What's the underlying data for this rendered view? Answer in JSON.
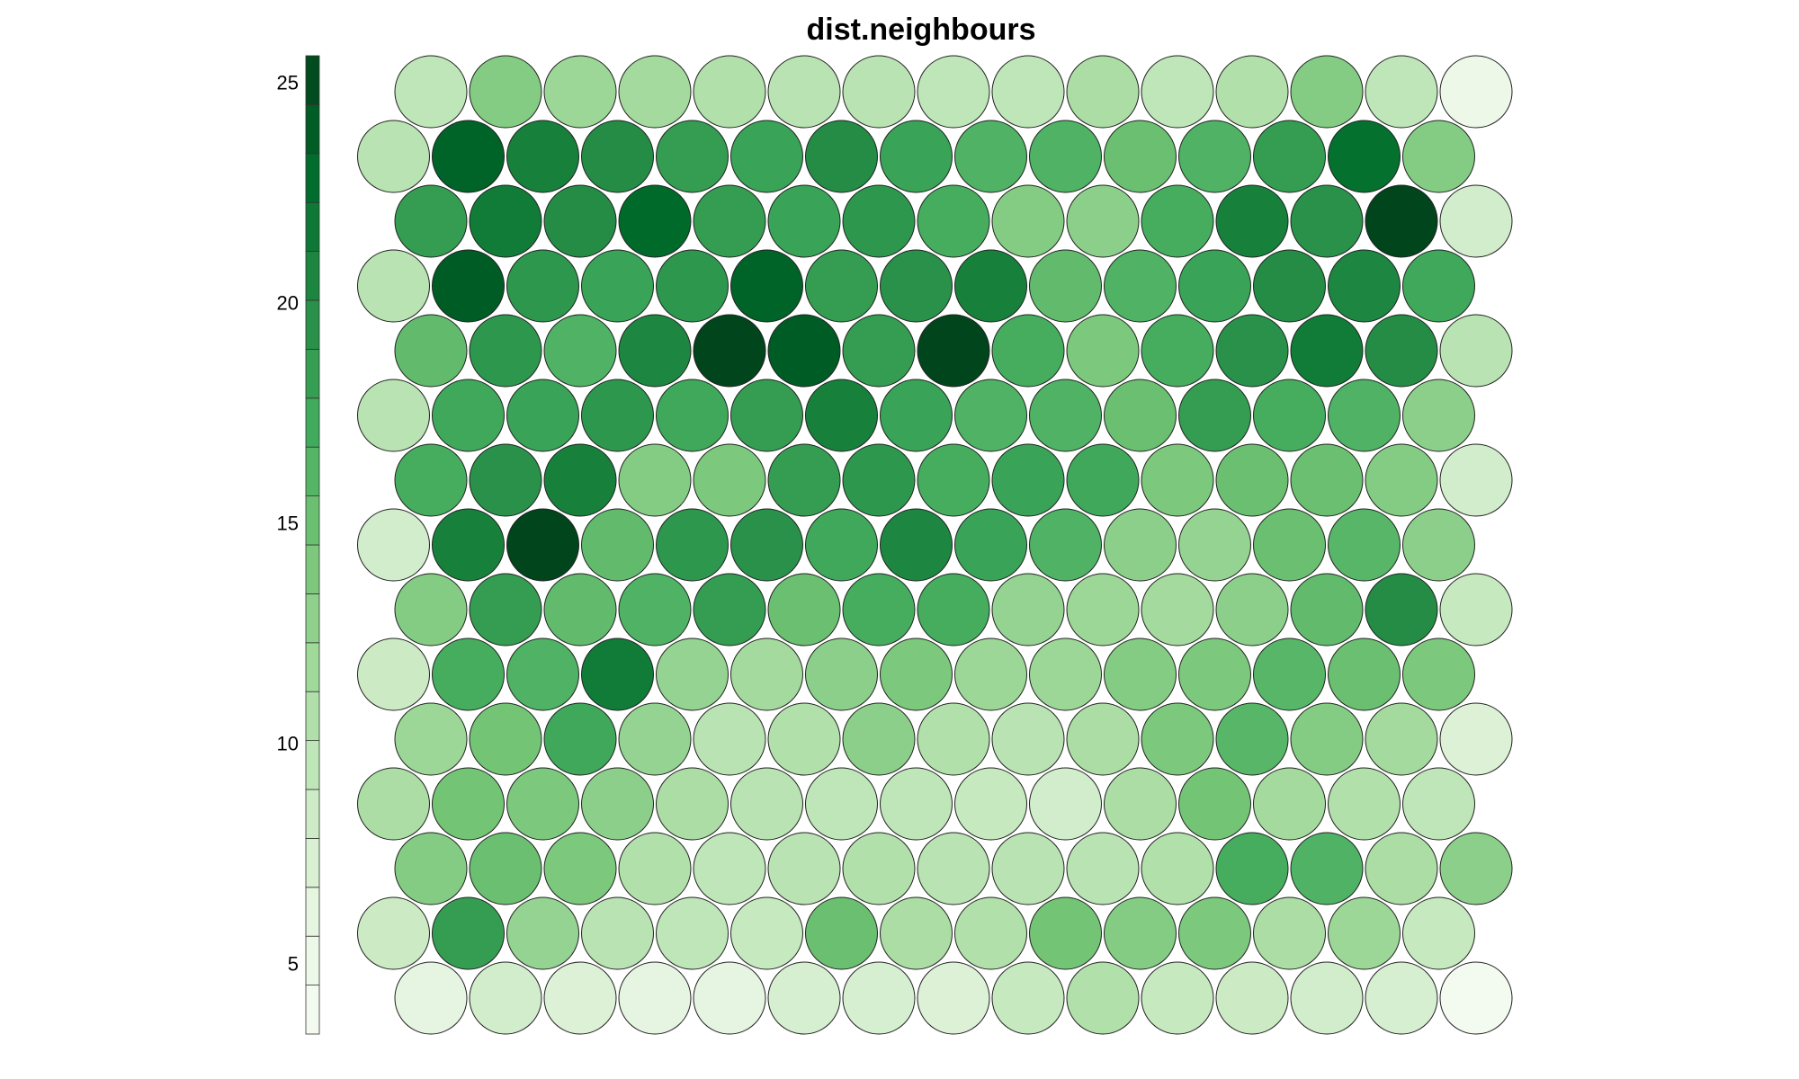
{
  "chart_data": {
    "type": "heatmap",
    "title": "dist.neighbours",
    "layout": "hexagonal",
    "grid_rows": 15,
    "grid_cols": 15,
    "row_order": "top-to-bottom",
    "colorbar": {
      "placement": "left",
      "range": [
        3.4,
        25.6
      ],
      "ticks": [
        5,
        10,
        15,
        20,
        25
      ],
      "steps": 20,
      "colors": [
        "#f7fcf5",
        "#e5f5e0",
        "#c7e9c0",
        "#a1d99b",
        "#74c476",
        "#41ab5d",
        "#238b45",
        "#006d2c",
        "#00441b"
      ]
    },
    "values": [
      [
        9.5,
        13.5,
        12.0,
        11.5,
        10.5,
        10.0,
        10.0,
        9.5,
        9.5,
        11.0,
        9.5,
        10.5,
        13.5,
        9.5,
        5.0
      ],
      [
        10.0,
        23.5,
        21.0,
        20.0,
        18.5,
        18.0,
        20.0,
        18.0,
        16.5,
        16.5,
        15.0,
        16.5,
        18.5,
        22.5,
        13.5
      ],
      [
        18.5,
        21.5,
        20.0,
        23.0,
        18.5,
        18.0,
        19.0,
        17.0,
        13.5,
        13.0,
        17.0,
        21.0,
        19.5,
        25.5,
        8.0
      ],
      [
        10.0,
        24.0,
        19.0,
        18.0,
        19.0,
        23.5,
        18.5,
        19.5,
        21.0,
        15.5,
        16.5,
        18.0,
        20.0,
        20.5,
        17.5
      ],
      [
        15.5,
        19.0,
        16.5,
        20.5,
        25.5,
        24.0,
        18.5,
        25.5,
        17.0,
        14.0,
        17.0,
        19.5,
        21.5,
        20.0,
        10.0
      ],
      [
        10.0,
        17.5,
        18.0,
        19.0,
        17.5,
        18.5,
        21.0,
        18.0,
        16.5,
        16.5,
        15.0,
        18.5,
        17.0,
        16.5,
        13.0
      ],
      [
        17.0,
        19.5,
        21.0,
        13.5,
        14.0,
        18.5,
        19.0,
        17.0,
        18.0,
        17.5,
        14.0,
        15.0,
        15.0,
        13.5,
        8.0
      ],
      [
        8.0,
        21.0,
        25.5,
        15.5,
        19.0,
        19.5,
        17.5,
        20.5,
        18.0,
        16.5,
        13.0,
        12.5,
        15.0,
        16.0,
        13.0
      ],
      [
        13.5,
        18.5,
        15.5,
        16.5,
        18.5,
        15.0,
        17.0,
        17.0,
        12.5,
        12.0,
        11.5,
        13.0,
        15.5,
        20.0,
        9.0
      ],
      [
        8.5,
        17.0,
        16.5,
        21.5,
        12.5,
        11.5,
        13.0,
        14.0,
        12.0,
        12.0,
        13.5,
        14.0,
        16.0,
        15.0,
        14.0
      ],
      [
        12.0,
        14.5,
        17.5,
        12.5,
        10.0,
        10.5,
        13.0,
        10.5,
        10.0,
        11.0,
        14.0,
        16.0,
        13.5,
        11.5,
        7.0
      ],
      [
        11.0,
        14.5,
        14.0,
        13.0,
        11.0,
        10.0,
        9.5,
        9.5,
        9.0,
        8.0,
        11.0,
        14.5,
        11.5,
        10.5,
        9.5
      ],
      [
        13.5,
        15.0,
        14.0,
        10.5,
        9.5,
        10.0,
        10.5,
        10.0,
        10.0,
        10.0,
        10.5,
        17.0,
        16.5,
        11.0,
        13.0
      ],
      [
        8.5,
        18.5,
        12.5,
        10.0,
        9.5,
        9.0,
        15.0,
        11.0,
        10.5,
        14.5,
        13.5,
        14.0,
        11.0,
        12.0,
        9.0
      ],
      [
        6.0,
        8.0,
        7.0,
        6.0,
        6.0,
        7.5,
        7.5,
        7.0,
        9.0,
        10.5,
        9.0,
        8.5,
        8.0,
        7.5,
        4.0
      ]
    ]
  }
}
